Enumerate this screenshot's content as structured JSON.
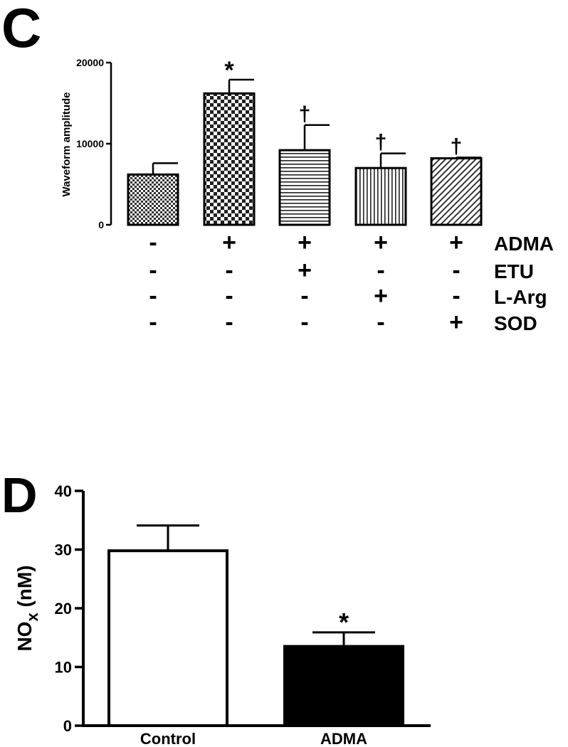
{
  "panels": {
    "c_label": "C",
    "d_label": "D"
  },
  "chart_data": [
    {
      "type": "bar",
      "panel": "C",
      "ylabel": "Waveform amplitude",
      "ylim": [
        0,
        20000
      ],
      "yticks": [
        0,
        10000,
        20000
      ],
      "ytick_labels": [
        "0",
        "10000",
        "20000"
      ],
      "categories": [
        "1",
        "2",
        "3",
        "4",
        "5"
      ],
      "values": [
        6200,
        16200,
        9200,
        7000,
        8200
      ],
      "errors": [
        1400,
        1700,
        3100,
        1800,
        100
      ],
      "patterns": [
        "fine-check",
        "coarse-check",
        "horizontal",
        "vertical",
        "diagonal"
      ],
      "annotations": [
        "",
        "*",
        "†",
        "†",
        "†"
      ],
      "treatments": [
        {
          "name": "ADMA",
          "signs": [
            "-",
            "+",
            "+",
            "+",
            "+"
          ]
        },
        {
          "name": "ETU",
          "signs": [
            "-",
            "-",
            "+",
            "-",
            "-"
          ]
        },
        {
          "name": "L-Arg",
          "signs": [
            "-",
            "-",
            "-",
            "+",
            "-"
          ]
        },
        {
          "name": "SOD",
          "signs": [
            "-",
            "-",
            "-",
            "-",
            "+"
          ]
        }
      ],
      "legend": "none",
      "grid": false
    },
    {
      "type": "bar",
      "panel": "D",
      "ylabel_main": "NO",
      "ylabel_sub": "x",
      "ylabel_unit": " (nM)",
      "ylim": [
        0,
        40
      ],
      "yticks": [
        0,
        10,
        20,
        30,
        40
      ],
      "ytick_labels": [
        "0",
        "10",
        "20",
        "30",
        "40"
      ],
      "categories": [
        "Control",
        "ADMA"
      ],
      "values": [
        29.8,
        13.5
      ],
      "errors": [
        4.3,
        2.4
      ],
      "fills": [
        "#ffffff",
        "#000000"
      ],
      "annotations": [
        "",
        "*"
      ],
      "legend": "none",
      "grid": false
    }
  ]
}
